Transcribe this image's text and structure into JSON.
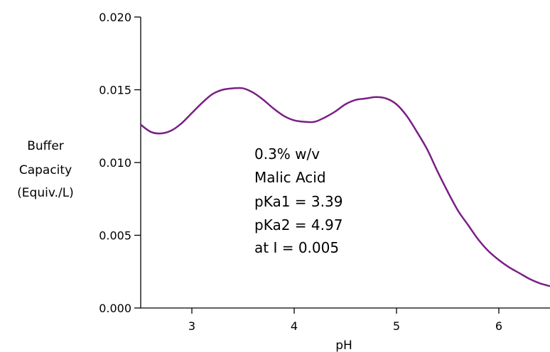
{
  "chart_data": {
    "type": "line",
    "title": "",
    "xlabel": "pH",
    "ylabel_lines": [
      "Buffer",
      "Capacity",
      "(Equiv./L)"
    ],
    "xlim": [
      2.5,
      6.5
    ],
    "ylim": [
      0.0,
      0.02
    ],
    "x_ticks": [
      3,
      4,
      5,
      6
    ],
    "x_tick_labels": [
      "3",
      "4",
      "5",
      "6"
    ],
    "y_ticks": [
      0.0,
      0.005,
      0.01,
      0.015,
      0.02
    ],
    "y_tick_labels": [
      "0.000",
      "0.005",
      "0.010",
      "0.015",
      "0.020"
    ],
    "grid": false,
    "line_color": "#7a1f86",
    "series": [
      {
        "x": [
          2.5,
          2.6,
          2.7,
          2.8,
          2.9,
          3.0,
          3.1,
          3.2,
          3.3,
          3.4,
          3.5,
          3.6,
          3.7,
          3.8,
          3.9,
          4.0,
          4.1,
          4.2,
          4.3,
          4.4,
          4.5,
          4.6,
          4.7,
          4.8,
          4.9,
          5.0,
          5.1,
          5.2,
          5.3,
          5.4,
          5.5,
          5.6,
          5.7,
          5.8,
          5.9,
          6.0,
          6.1,
          6.2,
          6.3,
          6.4,
          6.5
        ],
        "y": [
          0.0126,
          0.0121,
          0.012,
          0.0122,
          0.0127,
          0.0134,
          0.0141,
          0.0147,
          0.015,
          0.0151,
          0.0151,
          0.0148,
          0.0143,
          0.0137,
          0.0132,
          0.0129,
          0.0128,
          0.0128,
          0.0131,
          0.0135,
          0.014,
          0.0143,
          0.0144,
          0.0145,
          0.0144,
          0.014,
          0.0132,
          0.0121,
          0.0109,
          0.0094,
          0.008,
          0.0067,
          0.0057,
          0.0047,
          0.0039,
          0.0033,
          0.0028,
          0.0024,
          0.002,
          0.0017,
          0.0015
        ]
      }
    ],
    "annotation_lines": [
      "0.3% w/v",
      "Malic Acid",
      "pKa1 = 3.39",
      "pKa2 = 4.97",
      "at I = 0.005"
    ]
  }
}
